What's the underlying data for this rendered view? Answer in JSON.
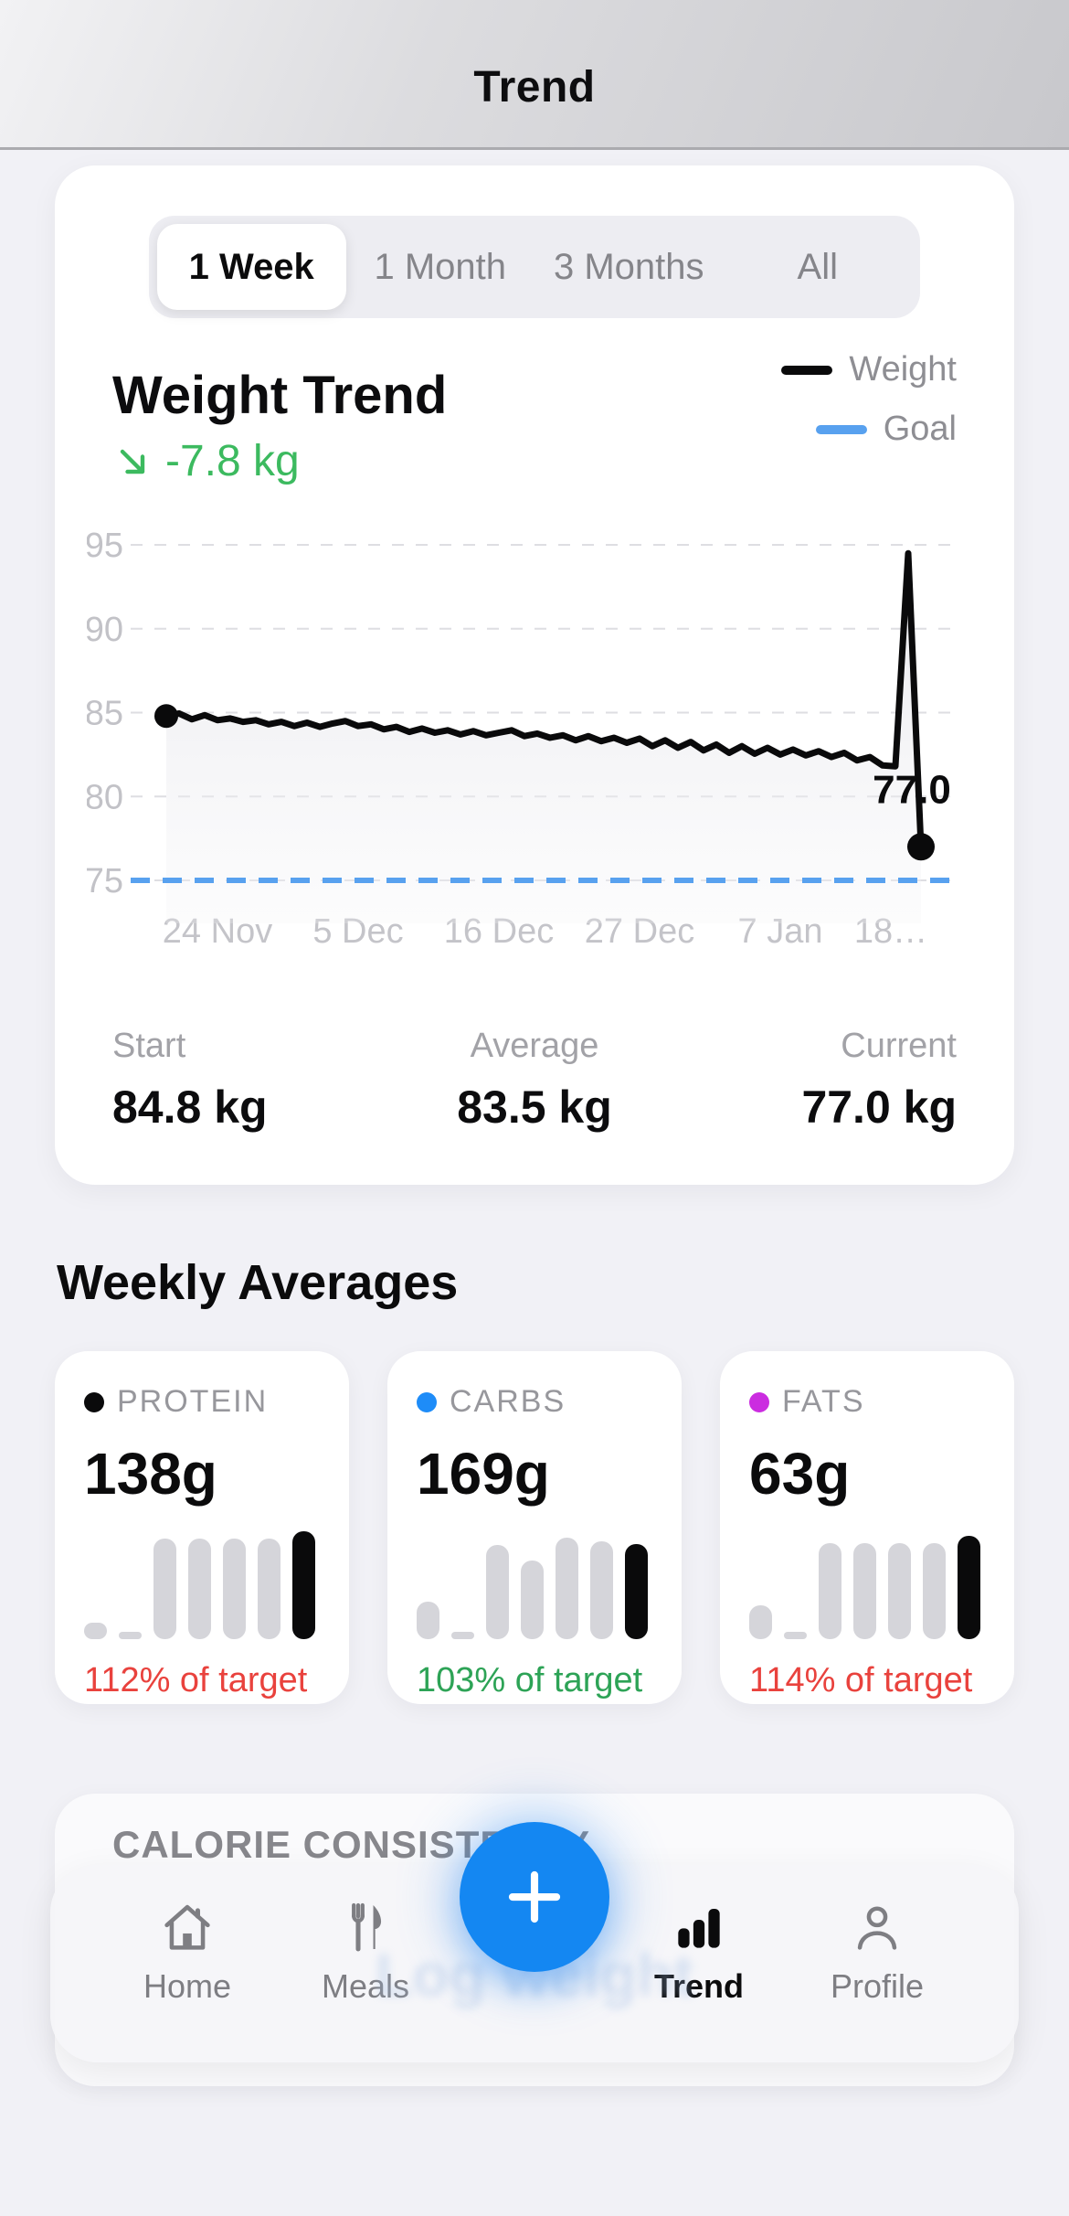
{
  "header": {
    "title": "Trend"
  },
  "trend_card": {
    "segmented": {
      "options": [
        {
          "label": "1 Week",
          "selected": true
        },
        {
          "label": "1 Month",
          "selected": false
        },
        {
          "label": "3 Months",
          "selected": false
        },
        {
          "label": "All",
          "selected": false
        }
      ]
    },
    "title": "Weight Trend",
    "delta": {
      "text": "-7.8 kg",
      "color": "#3cba5f",
      "direction": "down"
    },
    "legend": [
      {
        "label": "Weight",
        "color": "#0a0a0b"
      },
      {
        "label": "Goal",
        "color": "#58a1ef"
      }
    ],
    "stats": [
      {
        "label": "Start",
        "value": "84.8 kg"
      },
      {
        "label": "Average",
        "value": "83.5 kg"
      },
      {
        "label": "Current",
        "value": "77.0 kg"
      }
    ]
  },
  "chart_data": {
    "type": "line",
    "title": "Weight Trend",
    "xlabel": "",
    "ylabel": "kg",
    "xlim": [
      0,
      61
    ],
    "ylim": [
      73,
      96
    ],
    "grid": true,
    "legend_position": "top-right",
    "y_ticks": [
      95,
      90,
      85,
      80,
      75
    ],
    "x_ticks": [
      {
        "pos": 4,
        "label": "24 Nov"
      },
      {
        "pos": 15,
        "label": "5 Dec"
      },
      {
        "pos": 26,
        "label": "16 Dec"
      },
      {
        "pos": 37,
        "label": "27 Dec"
      },
      {
        "pos": 48,
        "label": "7 Jan"
      },
      {
        "pos": 59,
        "label": "18…"
      }
    ],
    "end_label": "77.0",
    "area_fill": true,
    "series": [
      {
        "name": "Weight",
        "type": "line",
        "color": "#0a0a0b",
        "x": [
          0,
          1,
          2,
          3,
          4,
          5,
          6,
          7,
          8,
          9,
          10,
          11,
          12,
          13,
          14,
          15,
          16,
          17,
          18,
          19,
          20,
          21,
          22,
          23,
          24,
          25,
          26,
          27,
          28,
          29,
          30,
          31,
          32,
          33,
          34,
          35,
          36,
          37,
          38,
          39,
          40,
          41,
          42,
          43,
          44,
          45,
          46,
          47,
          48,
          49,
          50,
          51,
          52,
          53,
          54,
          55,
          56,
          57,
          58,
          59
        ],
        "values": [
          84.8,
          84.95,
          84.6,
          84.85,
          84.55,
          84.65,
          84.45,
          84.55,
          84.3,
          84.45,
          84.2,
          84.4,
          84.15,
          84.35,
          84.5,
          84.2,
          84.3,
          84.0,
          84.15,
          83.85,
          84.05,
          83.8,
          83.95,
          83.7,
          83.9,
          83.65,
          83.8,
          83.95,
          83.6,
          83.75,
          83.5,
          83.65,
          83.35,
          83.6,
          83.3,
          83.5,
          83.2,
          83.45,
          83.0,
          83.35,
          82.9,
          83.25,
          82.75,
          83.1,
          82.6,
          83.0,
          82.55,
          82.9,
          82.5,
          82.8,
          82.45,
          82.7,
          82.35,
          82.6,
          82.15,
          82.35,
          81.85,
          81.8,
          94.5,
          77.0
        ]
      },
      {
        "name": "Goal",
        "type": "hline",
        "style": "dashed",
        "color": "#58a1ef",
        "value": 75
      }
    ]
  },
  "weekly": {
    "heading": "Weekly Averages",
    "macros": [
      {
        "name": "PROTEIN",
        "dot_color": "#0a0a0b",
        "value": "138g",
        "percent": "112% of target",
        "percent_color": "#e9423d",
        "bars": [
          15,
          7,
          93,
          93,
          93,
          93,
          100
        ]
      },
      {
        "name": "CARBS",
        "dot_color": "#1e8cf8",
        "value": "169g",
        "percent": "103% of target",
        "percent_color": "#2da356",
        "bars": [
          35,
          7,
          87,
          73,
          94,
          91,
          88
        ]
      },
      {
        "name": "FATS",
        "dot_color": "#cb2ce0",
        "value": "63g",
        "percent": "114% of target",
        "percent_color": "#e9423d",
        "bars": [
          31,
          7,
          89,
          89,
          89,
          89,
          96
        ]
      }
    ]
  },
  "calorie_card": {
    "heading": "CALORIE CONSISTENCY",
    "ghost_text": "Log weight"
  },
  "tab_bar": {
    "items": [
      {
        "label": "Home",
        "icon": "home-icon",
        "active": false
      },
      {
        "label": "Meals",
        "icon": "meals-icon",
        "active": false
      },
      {
        "label": "Trend",
        "icon": "trend-icon",
        "active": true
      },
      {
        "label": "Profile",
        "icon": "profile-icon",
        "active": false
      }
    ],
    "fab_icon": "plus-icon"
  }
}
